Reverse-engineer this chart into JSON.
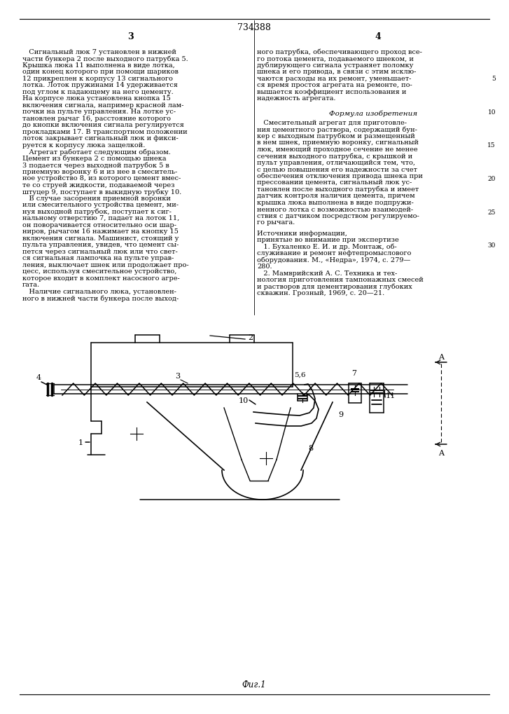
{
  "page_title": "734388",
  "col_left_num": "3",
  "col_right_num": "4",
  "fig_caption": "Фиг.1",
  "background": "#ffffff",
  "text_color": "#000000",
  "line_color": "#000000"
}
